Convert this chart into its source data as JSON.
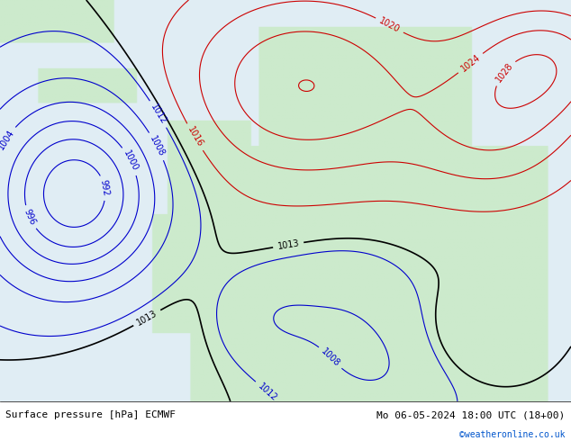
{
  "title_left": "Surface pressure [hPa] ECMWF",
  "title_right": "Mo 06-05-2024 18:00 UTC (18+00)",
  "credit": "©weatheronline.co.uk",
  "bg_color": "#d0e8f0",
  "land_color": "#c8e6c8",
  "sea_color": "#ddeeff",
  "contour_colors": {
    "blue": "#0000cc",
    "red": "#cc0000",
    "black": "#000000"
  },
  "bottom_bar_color": "#e8e8e8",
  "font_size_labels": 7,
  "font_size_bottom": 8,
  "font_size_credit": 7
}
